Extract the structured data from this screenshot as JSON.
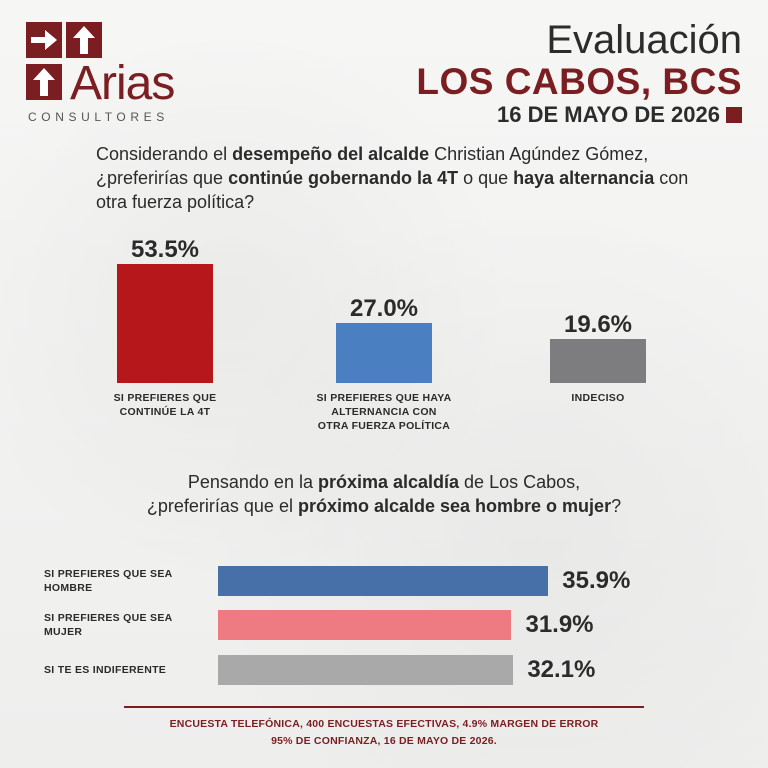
{
  "brand": {
    "name": "Arias",
    "subtitle": "CONSULTORES",
    "color": "#7b1e22"
  },
  "header": {
    "title": "Evaluación",
    "place": "LOS CABOS, BCS",
    "date": "16 DE MAYO DE 2026"
  },
  "question1": {
    "line1_a": "Considerando el ",
    "line1_b": "desempeño del alcalde",
    "line1_c": " Christian Agúndez Gómez,",
    "line2_a": "¿preferirías que ",
    "line2_b": "continúe gobernando la 4T",
    "line2_c": " o que ",
    "line2_d": "haya alternancia",
    "line2_e": " con",
    "line3": "otra fuerza política?"
  },
  "question2": {
    "line1_a": "Pensando en la ",
    "line1_b": "próxima alcaldía",
    "line1_c": " de Los Cabos,",
    "line2_a": "¿preferirías que el ",
    "line2_b": "próximo alcalde sea hombre o mujer",
    "line2_c": "?"
  },
  "chart_data": [
    {
      "type": "bar",
      "orientation": "vertical",
      "categories": [
        "SI PREFIERES QUE CONTINÚE LA 4T",
        "SI PREFIERES QUE HAYA ALTERNANCIA CON OTRA FUERZA POLÍTICA",
        "INDECISO"
      ],
      "values": [
        53.5,
        27.0,
        19.6
      ],
      "value_labels": [
        "53.5%",
        "27.0%",
        "19.6%"
      ],
      "label_lines": [
        [
          "SI PREFIERES QUE",
          "CONTINÚE LA 4T"
        ],
        [
          "SI PREFIERES QUE HAYA",
          "ALTERNANCIA CON",
          "OTRA FUERZA POLÍTICA"
        ],
        [
          "INDECISO"
        ]
      ],
      "colors": [
        "#b5171b",
        "#4a7fc1",
        "#7d7d7f"
      ]
    },
    {
      "type": "bar",
      "orientation": "horizontal",
      "categories": [
        "SI PREFIERES QUE SEA HOMBRE",
        "SI PREFIERES QUE SEA MUJER",
        "SI TE ES INDIFERENTE"
      ],
      "values": [
        35.9,
        31.9,
        32.1
      ],
      "value_labels": [
        "35.9%",
        "31.9%",
        "32.1%"
      ],
      "label_lines": [
        [
          "SI PREFIERES QUE SEA",
          "HOMBRE"
        ],
        [
          "SI PREFIERES QUE SEA",
          "MUJER"
        ],
        [
          "SI TE ES INDIFERENTE"
        ]
      ],
      "colors": [
        "#476fa8",
        "#ee7a82",
        "#a9a9a9"
      ]
    }
  ],
  "footer": {
    "line1": "ENCUESTA TELEFÓNICA, 400 ENCUESTAS EFECTIVAS, 4.9% MARGEN DE ERROR",
    "line2": "95% DE CONFIANZA, 16 DE MAYO DE 2026."
  },
  "icons": [
    "arrow-right-icon",
    "arrow-up-icon"
  ]
}
